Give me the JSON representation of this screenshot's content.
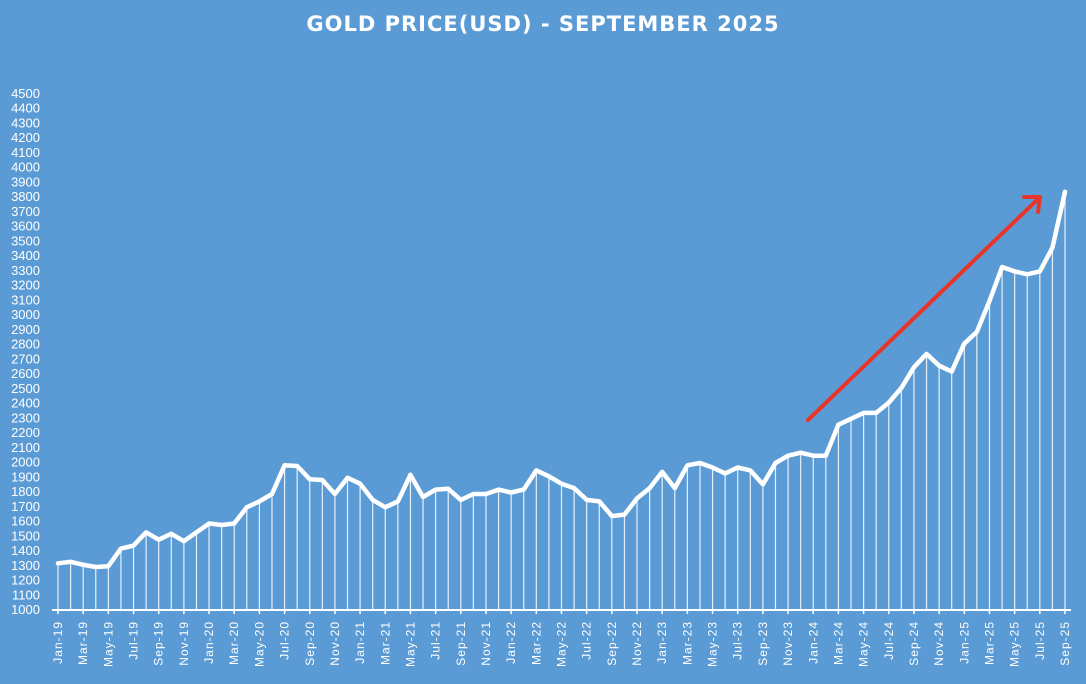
{
  "chart_data": {
    "type": "line",
    "title": "GOLD PRICE(USD) - SEPTEMBER 2025",
    "xlabel": "",
    "ylabel": "",
    "ylim": [
      1000,
      4500
    ],
    "ytick_step": 100,
    "grid": false,
    "legend": null,
    "line_color": "#ffffff",
    "background_color": "#5b9bd5",
    "annotation": {
      "type": "arrow",
      "color": "#e8352a",
      "description": "red upward trend arrow from Jan-24 to Aug-25"
    },
    "x": [
      "Jan-19",
      "Feb-19",
      "Mar-19",
      "Apr-19",
      "May-19",
      "Jun-19",
      "Jul-19",
      "Aug-19",
      "Sep-19",
      "Oct-19",
      "Nov-19",
      "Dec-19",
      "Jan-20",
      "Feb-20",
      "Mar-20",
      "Apr-20",
      "May-20",
      "Jun-20",
      "Jul-20",
      "Aug-20",
      "Sep-20",
      "Oct-20",
      "Nov-20",
      "Dec-20",
      "Jan-21",
      "Feb-21",
      "Mar-21",
      "Apr-21",
      "May-21",
      "Jun-21",
      "Jul-21",
      "Aug-21",
      "Sep-21",
      "Oct-21",
      "Nov-21",
      "Dec-21",
      "Jan-22",
      "Feb-22",
      "Mar-22",
      "Apr-22",
      "May-22",
      "Jun-22",
      "Jul-22",
      "Aug-22",
      "Sep-22",
      "Oct-22",
      "Nov-22",
      "Dec-22",
      "Jan-23",
      "Feb-23",
      "Mar-23",
      "Apr-23",
      "May-23",
      "Jun-23",
      "Jul-23",
      "Aug-23",
      "Sep-23",
      "Oct-23",
      "Nov-23",
      "Dec-23",
      "Jan-24",
      "Feb-24",
      "Mar-24",
      "Apr-24",
      "May-24",
      "Jun-24",
      "Jul-24",
      "Aug-24",
      "Sep-24",
      "Oct-24",
      "Nov-24",
      "Dec-24",
      "Jan-25",
      "Feb-25",
      "Mar-25",
      "Apr-25",
      "May-25",
      "Jun-25",
      "Jul-25",
      "Aug-25",
      "Sep-25"
    ],
    "series": [
      {
        "name": "Gold Price (USD)",
        "values": [
          1310,
          1320,
          1300,
          1285,
          1290,
          1410,
          1430,
          1520,
          1470,
          1510,
          1460,
          1520,
          1580,
          1570,
          1580,
          1690,
          1730,
          1780,
          1975,
          1970,
          1880,
          1875,
          1780,
          1890,
          1850,
          1740,
          1690,
          1730,
          1910,
          1760,
          1810,
          1815,
          1740,
          1780,
          1780,
          1810,
          1790,
          1810,
          1940,
          1900,
          1850,
          1820,
          1740,
          1730,
          1630,
          1640,
          1750,
          1820,
          1930,
          1820,
          1975,
          1990,
          1960,
          1920,
          1960,
          1940,
          1845,
          1990,
          2040,
          2060,
          2040,
          2040,
          2250,
          2290,
          2330,
          2330,
          2400,
          2500,
          2640,
          2730,
          2650,
          2610,
          2800,
          2880,
          3090,
          3320,
          3290,
          3270,
          3290,
          3450,
          3830
        ]
      }
    ],
    "x_tick_labels": [
      "Jan-19",
      "Mar-19",
      "May-19",
      "Jul-19",
      "Sep-19",
      "Nov-19",
      "Jan-20",
      "Mar-20",
      "May-20",
      "Jul-20",
      "Sep-20",
      "Nov-20",
      "Jan-21",
      "Mar-21",
      "May-21",
      "Jul-21",
      "Sep-21",
      "Nov-21",
      "Jan-22",
      "Mar-22",
      "May-22",
      "Jul-22",
      "Sep-22",
      "Nov-22",
      "Jan-23",
      "Mar-23",
      "May-23",
      "Jul-23",
      "Sep-23",
      "Nov-23",
      "Jan-24",
      "Mar-24",
      "May-24",
      "Jul-24",
      "Sep-24",
      "Nov-24",
      "Jan-25",
      "Mar-25",
      "May-25",
      "Jul-25",
      "Sep-25"
    ]
  }
}
